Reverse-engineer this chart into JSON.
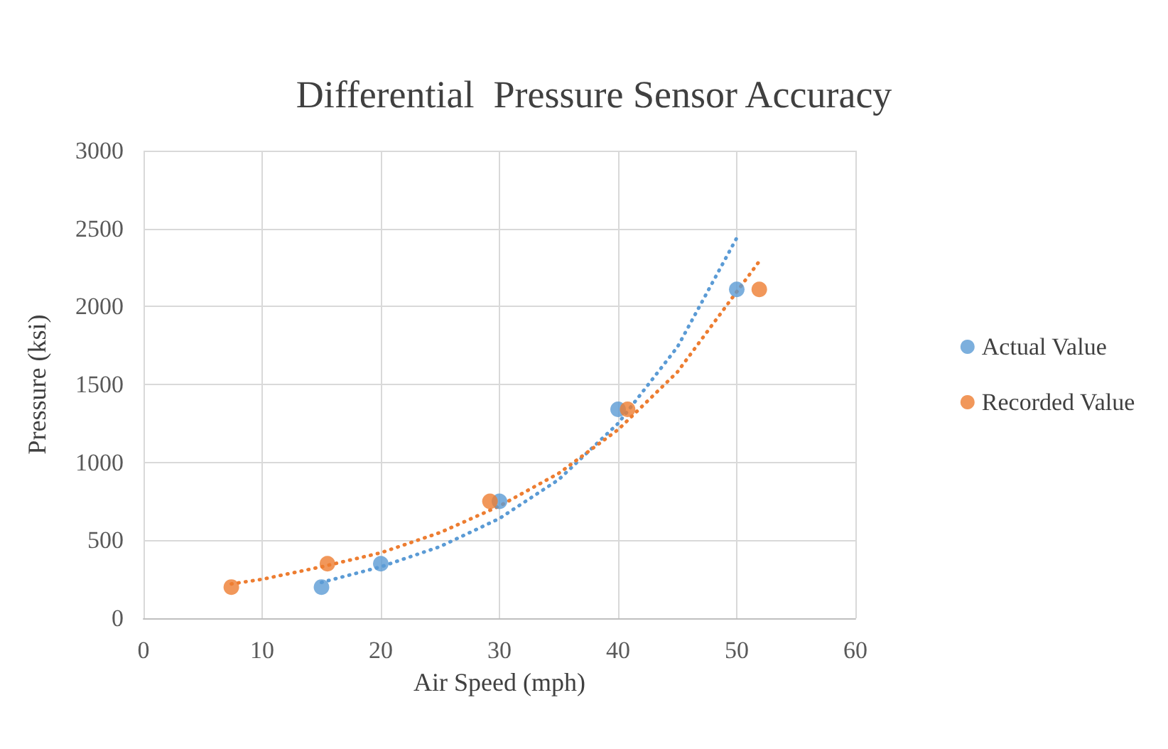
{
  "chart_data": {
    "type": "scatter",
    "title": "Differential  Pressure Sensor Accuracy",
    "xlabel": "Air Speed (mph)",
    "ylabel": "Pressure (ksi)",
    "xlim": [
      0,
      60
    ],
    "xticks": [
      0,
      10,
      20,
      30,
      40,
      50,
      60
    ],
    "ylim": [
      0,
      3000
    ],
    "yticks": [
      0,
      500,
      1000,
      1500,
      2000,
      2500,
      3000
    ],
    "grid": true,
    "legend": "right",
    "marker": "circle",
    "series": [
      {
        "name": "Actual Value",
        "color": "#5b9bd5",
        "x": [
          15,
          20,
          30,
          40,
          50
        ],
        "values": [
          200,
          350,
          750,
          1340,
          2110
        ]
      },
      {
        "name": "Recorded Value",
        "color": "#ed7d31",
        "x": [
          7.4,
          15.5,
          29.2,
          40.8,
          51.9
        ],
        "values": [
          200,
          350,
          750,
          1340,
          2110
        ]
      },
      {
        "type": "line",
        "marker": "none",
        "line_style": "dotted",
        "color": "#5b9bd5",
        "x": [
          15,
          20,
          25,
          30,
          35,
          40,
          45,
          50
        ],
        "values": [
          230,
          330,
          460,
          640,
          890,
          1250,
          1740,
          2440
        ]
      },
      {
        "type": "line",
        "marker": "none",
        "line_style": "dotted",
        "color": "#ed7d31",
        "x": [
          7.4,
          10,
          15,
          20,
          25,
          30,
          35,
          40,
          45,
          51.9
        ],
        "values": [
          220,
          250,
          330,
          420,
          550,
          720,
          930,
          1210,
          1580,
          2290
        ]
      }
    ]
  }
}
